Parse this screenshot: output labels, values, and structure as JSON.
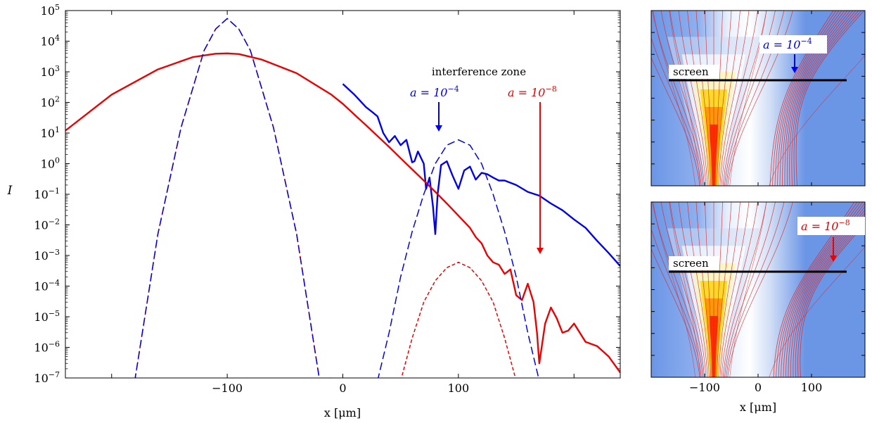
{
  "chart_data": [
    {
      "type": "line",
      "xlabel": "x [μm]",
      "ylabel": "I",
      "yscale": "log",
      "xlim": [
        -240,
        240
      ],
      "ylim": [
        1e-07,
        100000.0
      ],
      "x_ticks": [
        {
          "value": -100,
          "label": "−100"
        },
        {
          "value": 0,
          "label": "0"
        },
        {
          "value": 100,
          "label": "100"
        }
      ],
      "y_ticks": [
        {
          "exp": -7,
          "base": "10",
          "sup": "−7"
        },
        {
          "exp": -6,
          "base": "10",
          "sup": "−6"
        },
        {
          "exp": -5,
          "base": "10",
          "sup": "−5"
        },
        {
          "exp": -4,
          "base": "10",
          "sup": "−4"
        },
        {
          "exp": -3,
          "base": "10",
          "sup": "−3"
        },
        {
          "exp": -2,
          "base": "10",
          "sup": "−2"
        },
        {
          "exp": -1,
          "base": "10",
          "sup": "−1"
        },
        {
          "exp": 0,
          "base": "10",
          "sup": "0"
        },
        {
          "exp": 1,
          "base": "10",
          "sup": "1"
        },
        {
          "exp": 2,
          "base": "10",
          "sup": "2"
        },
        {
          "exp": 3,
          "base": "10",
          "sup": "3"
        },
        {
          "exp": 4,
          "base": "10",
          "sup": "4"
        },
        {
          "exp": 5,
          "base": "10",
          "sup": "5"
        }
      ],
      "grid": false,
      "annotations": {
        "zone_label": "interference zone",
        "blue_prefix": "a = 10",
        "blue_sup": "−4",
        "red_prefix": "a = 10",
        "red_sup": "−8"
      },
      "colors": {
        "blue": "#0000ee",
        "red": "#ee0000"
      },
      "series": [
        {
          "color": "blue",
          "style": "solid",
          "x": [
            0,
            10,
            20,
            25,
            30,
            35,
            40,
            45,
            50,
            55,
            60,
            62,
            65,
            70,
            72,
            75,
            78,
            80,
            82,
            85,
            90,
            95,
            100,
            105,
            110,
            115,
            120,
            125,
            130,
            135,
            140,
            150,
            160,
            170,
            180,
            190,
            200,
            210,
            220,
            230,
            240
          ],
          "y": [
            400,
            180,
            70,
            50,
            35,
            10,
            5,
            8,
            4,
            6,
            1.1,
            1.2,
            2.5,
            1.0,
            0.15,
            0.35,
            0.04,
            0.005,
            0.1,
            0.9,
            1.2,
            0.4,
            0.15,
            0.6,
            0.8,
            0.3,
            0.5,
            0.45,
            0.35,
            0.28,
            0.28,
            0.2,
            0.12,
            0.09,
            0.05,
            0.03,
            0.015,
            0.008,
            0.003,
            0.0012,
            0.00045
          ]
        },
        {
          "color": "red",
          "style": "solid",
          "x": [
            -240,
            -200,
            -160,
            -130,
            -110,
            -100,
            -90,
            -70,
            -40,
            -10,
            0,
            10,
            20,
            30,
            40,
            50,
            60,
            70,
            80,
            90,
            100,
            110,
            115,
            120,
            125,
            130,
            135,
            140,
            145,
            150,
            155,
            160,
            165,
            168,
            170,
            175,
            180,
            185,
            190,
            195,
            200,
            210,
            220,
            230,
            240
          ],
          "y": [
            12,
            180,
            1200,
            3000,
            3900,
            4000,
            3800,
            2500,
            900,
            180,
            90,
            40,
            18,
            8,
            3.5,
            1.5,
            0.65,
            0.28,
            0.12,
            0.05,
            0.02,
            0.008,
            0.004,
            0.0025,
            0.001,
            0.0006,
            0.0005,
            0.00025,
            0.00035,
            5e-05,
            3.5e-05,
            0.00012,
            3e-05,
            3e-06,
            3e-07,
            6e-06,
            2e-05,
            9e-06,
            3e-06,
            3.5e-06,
            6e-06,
            1.5e-06,
            1.1e-06,
            5e-07,
            1.5e-07
          ]
        },
        {
          "color": "red",
          "style": "dashed",
          "x": [
            -200,
            -180,
            -160,
            -140,
            -120,
            -110,
            -100,
            -90,
            -80,
            -60,
            -40,
            -20,
            -10
          ],
          "y": [
            1e-07,
            8e-08,
            0.005,
            15,
            5000,
            25000,
            55000,
            25000,
            5000,
            15,
            0.005,
            8e-08,
            1e-07
          ]
        },
        {
          "color": "blue",
          "style": "dashed",
          "x": [
            -180,
            -160,
            -140,
            -120,
            -110,
            -100,
            -90,
            -80,
            -60,
            -40,
            -20
          ],
          "y": [
            8e-08,
            0.005,
            15,
            5000,
            25000,
            55000,
            25000,
            5000,
            15,
            0.005,
            8e-08
          ]
        },
        {
          "color": "blue",
          "style": "dashed",
          "x": [
            30,
            40,
            50,
            60,
            70,
            80,
            90,
            100,
            110,
            120,
            130,
            140,
            150,
            160,
            170
          ],
          "y": [
            8e-08,
            3e-06,
            0.0002,
            0.006,
            0.1,
            1.0,
            4.0,
            6.0,
            4.0,
            1.0,
            0.1,
            0.006,
            0.0002,
            3e-06,
            8e-08
          ]
        },
        {
          "color": "red",
          "style": "dotted",
          "x": [
            50,
            60,
            70,
            80,
            90,
            100,
            110,
            120,
            130,
            140,
            150
          ],
          "y": [
            8e-08,
            2e-06,
            3e-05,
            0.00015,
            0.0004,
            0.0006,
            0.0004,
            0.00015,
            3e-05,
            2e-06,
            8e-08
          ]
        }
      ]
    },
    {
      "type": "heatmap",
      "panel": "top",
      "xlabel": "",
      "screen_label": "screen",
      "arrow_prefix": "a = 10",
      "arrow_sup": "−4",
      "arrow_color": "blue"
    },
    {
      "type": "heatmap",
      "panel": "bottom",
      "xlabel": "x [μm]",
      "x_ticks": [
        {
          "value": -100,
          "label": "−100"
        },
        {
          "value": 0,
          "label": "0"
        },
        {
          "value": 100,
          "label": "100"
        }
      ],
      "screen_label": "screen",
      "arrow_prefix": "a = 10",
      "arrow_sup": "−8",
      "arrow_color": "red"
    }
  ]
}
